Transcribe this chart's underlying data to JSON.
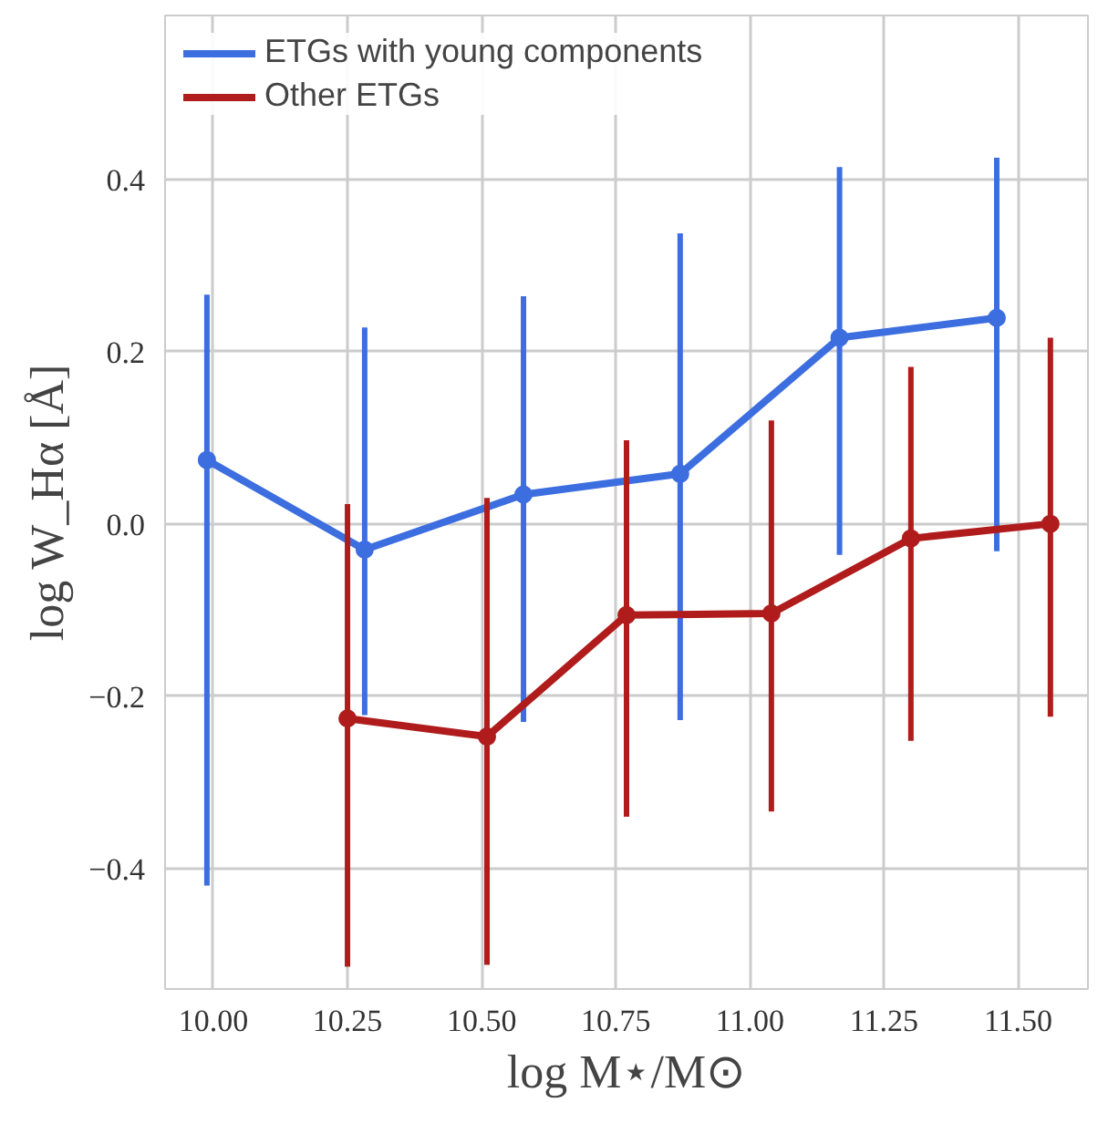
{
  "chart_data": {
    "type": "line",
    "xlabel": "log M⋆/M⊙",
    "ylabel": "log W_Hα [Å]",
    "xlim": [
      9.91,
      11.63
    ],
    "ylim": [
      -0.54,
      0.59
    ],
    "xticks": [
      {
        "value": 10.0,
        "label": "10.00"
      },
      10.25,
      {
        "value": 10.5,
        "label": "10.50"
      },
      10.75,
      {
        "value": 11.0,
        "label": "11.00"
      },
      11.25,
      {
        "value": 11.5,
        "label": "11.50"
      }
    ],
    "yticks": [
      {
        "value": -0.4,
        "label": "−0.4"
      },
      {
        "value": -0.2,
        "label": "−0.2"
      },
      {
        "value": 0.0,
        "label": "0.0"
      },
      0.2,
      0.4
    ],
    "grid": true,
    "legend": "top left",
    "marker": "circle",
    "line_style": "solid",
    "series": [
      {
        "name": "ETGs with young components",
        "color": "#3d6ee0",
        "x": [
          9.988,
          10.282,
          10.578,
          10.87,
          11.167,
          11.46
        ],
        "values": [
          0.074,
          -0.03,
          0.034,
          0.058,
          0.216,
          0.239
        ],
        "errors": [
          [
            -0.42,
            0.266
          ],
          [
            -0.222,
            0.228
          ],
          [
            -0.23,
            0.264
          ],
          [
            -0.228,
            0.337
          ],
          [
            -0.036,
            0.414
          ],
          [
            -0.032,
            0.425
          ]
        ]
      },
      {
        "name": "Other ETGs",
        "color": "#b01c1c",
        "x": [
          10.25,
          10.51,
          10.77,
          11.04,
          11.3,
          11.56
        ],
        "values": [
          -0.226,
          -0.247,
          -0.106,
          -0.104,
          -0.017,
          0.0
        ],
        "errors": [
          [
            -0.514,
            0.023
          ],
          [
            -0.512,
            0.03
          ],
          [
            -0.34,
            0.097
          ],
          [
            -0.334,
            0.12
          ],
          [
            -0.252,
            0.182
          ],
          [
            -0.224,
            0.216
          ]
        ]
      }
    ]
  }
}
